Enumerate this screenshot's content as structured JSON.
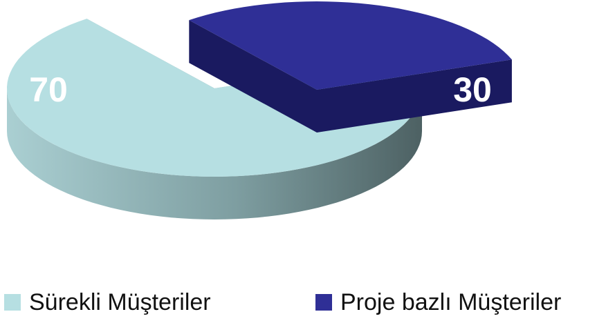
{
  "chart_data": {
    "type": "pie",
    "categories": [
      "Sürekli Müşteriler",
      "Proje bazlı Müşteriler"
    ],
    "values": [
      70,
      30
    ],
    "colors": [
      "#b6dfe2",
      "#2f2f96"
    ],
    "side_colors": [
      "#8fb4b7",
      "#1b1b66"
    ],
    "exploded": [
      false,
      true
    ],
    "style": "3d",
    "legend": "bottom",
    "data_labels": [
      "70",
      "30"
    ]
  }
}
